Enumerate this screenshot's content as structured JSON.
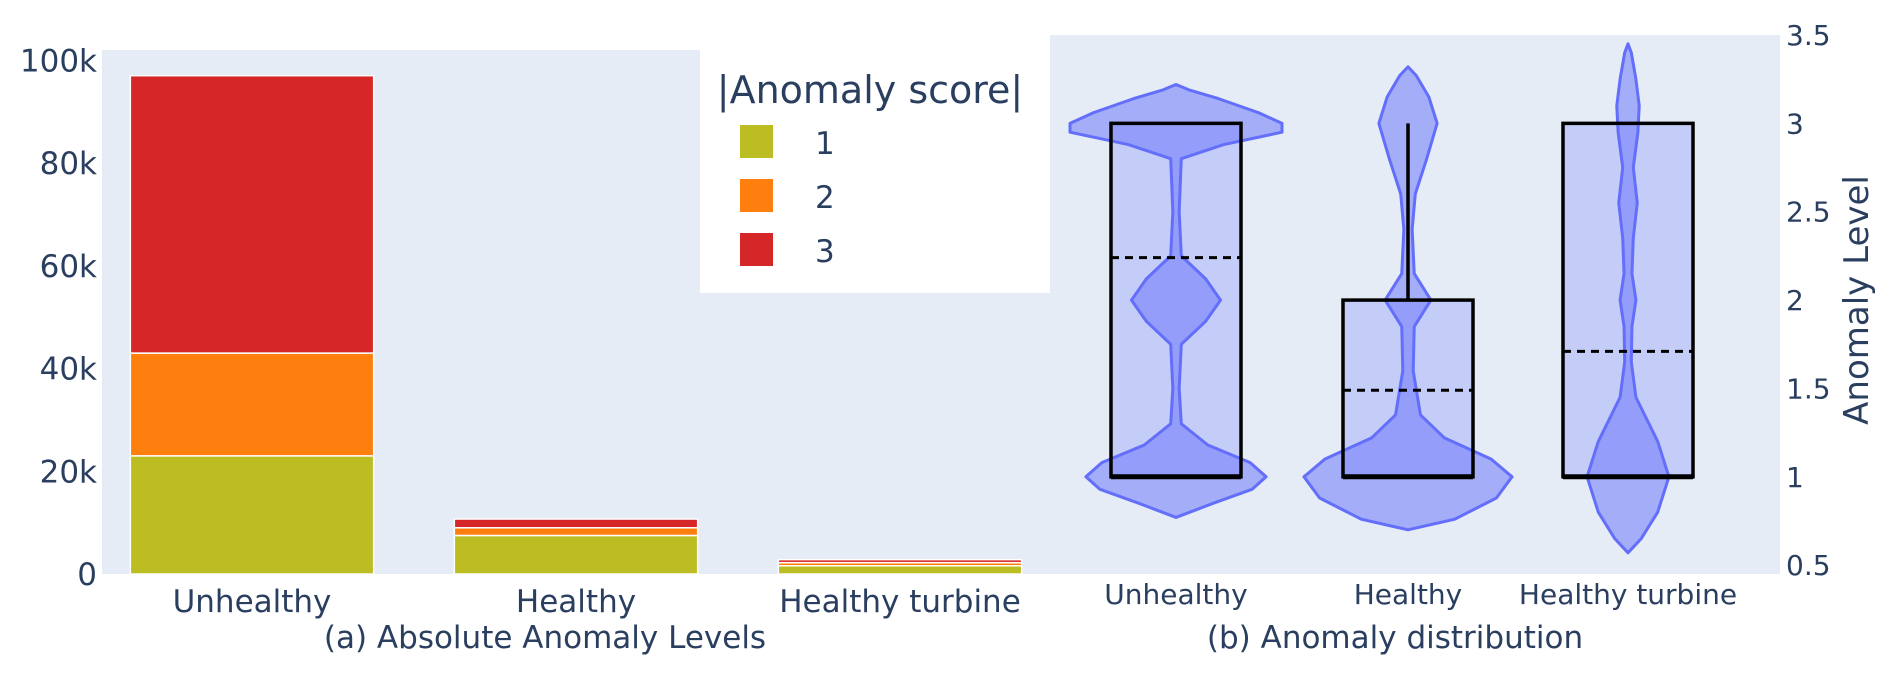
{
  "chart_data": [
    {
      "type": "bar",
      "stacked": true,
      "caption": "(a) Absolute Anomaly Levels",
      "categories": [
        "Unhealthy",
        "Healthy",
        "Healthy turbine"
      ],
      "series": [
        {
          "name": "1",
          "values": [
            23000,
            7500,
            1600
          ],
          "color": "#bcbd22"
        },
        {
          "name": "2",
          "values": [
            20000,
            1500,
            600
          ],
          "color": "#ff7f0e"
        },
        {
          "name": "3",
          "values": [
            54000,
            1700,
            600
          ],
          "color": "#d62728"
        }
      ],
      "legend": {
        "title": "|Anomaly score|",
        "position": "top-right"
      },
      "ylim": [
        0,
        102000
      ],
      "yticks": [
        {
          "value": 0,
          "label": "0"
        },
        {
          "value": 20000,
          "label": "20k"
        },
        {
          "value": 40000,
          "label": "40k"
        },
        {
          "value": 60000,
          "label": "60k"
        },
        {
          "value": 80000,
          "label": "80k"
        },
        {
          "value": 100000,
          "label": "100k"
        }
      ],
      "plot_bg": "#e5ecf6",
      "grid": false
    },
    {
      "type": "violin",
      "caption": "(b) Anomaly distribution",
      "ylabel": "Anomaly Level",
      "ylim": [
        0.45,
        3.5
      ],
      "yaxis_side": "right",
      "yticks": [
        {
          "value": 0.5,
          "label": "0.5"
        },
        {
          "value": 1,
          "label": "1"
        },
        {
          "value": 1.5,
          "label": "1.5"
        },
        {
          "value": 2,
          "label": "2"
        },
        {
          "value": 2.5,
          "label": "2.5"
        },
        {
          "value": 3,
          "label": "3"
        },
        {
          "value": 3.5,
          "label": "3.5"
        }
      ],
      "categories": [
        "Unhealthy",
        "Healthy",
        "Healthy turbine"
      ],
      "box": [
        {
          "q1": 1,
          "median": 1,
          "q3": 3,
          "mean": 2.24,
          "whisker_low": 1,
          "whisker_high": 3
        },
        {
          "q1": 1,
          "median": 1,
          "q3": 2,
          "mean": 1.49,
          "whisker_low": 1,
          "whisker_high": 3
        },
        {
          "q1": 1,
          "median": 1,
          "q3": 3,
          "mean": 1.71,
          "whisker_low": 1,
          "whisker_high": 3
        }
      ],
      "violins": [
        {
          "ymin": 0.77,
          "ymax": 3.22,
          "profile": [
            [
              0.77,
              0.0
            ],
            [
              0.85,
              0.35
            ],
            [
              0.93,
              0.72
            ],
            [
              1.0,
              0.85
            ],
            [
              1.08,
              0.7
            ],
            [
              1.18,
              0.3
            ],
            [
              1.3,
              0.05
            ],
            [
              1.5,
              0.03
            ],
            [
              1.75,
              0.05
            ],
            [
              1.88,
              0.28
            ],
            [
              2.0,
              0.42
            ],
            [
              2.12,
              0.28
            ],
            [
              2.25,
              0.05
            ],
            [
              2.5,
              0.03
            ],
            [
              2.8,
              0.05
            ],
            [
              2.88,
              0.45
            ],
            [
              2.95,
              1.0
            ],
            [
              3.0,
              1.0
            ],
            [
              3.06,
              0.78
            ],
            [
              3.14,
              0.4
            ],
            [
              3.19,
              0.12
            ],
            [
              3.22,
              0.0
            ]
          ]
        },
        {
          "ymin": 0.7,
          "ymax": 3.32,
          "profile": [
            [
              0.7,
              0.0
            ],
            [
              0.76,
              0.45
            ],
            [
              0.88,
              0.85
            ],
            [
              1.0,
              1.0
            ],
            [
              1.1,
              0.8
            ],
            [
              1.22,
              0.35
            ],
            [
              1.35,
              0.12
            ],
            [
              1.6,
              0.05
            ],
            [
              1.85,
              0.06
            ],
            [
              2.0,
              0.22
            ],
            [
              2.15,
              0.06
            ],
            [
              2.4,
              0.04
            ],
            [
              2.6,
              0.07
            ],
            [
              2.8,
              0.18
            ],
            [
              3.0,
              0.28
            ],
            [
              3.15,
              0.2
            ],
            [
              3.27,
              0.08
            ],
            [
              3.32,
              0.0
            ]
          ]
        },
        {
          "ymin": 0.57,
          "ymax": 3.45,
          "profile": [
            [
              0.57,
              0.0
            ],
            [
              0.65,
              0.2
            ],
            [
              0.8,
              0.45
            ],
            [
              1.0,
              0.62
            ],
            [
              1.2,
              0.45
            ],
            [
              1.45,
              0.12
            ],
            [
              1.65,
              0.05
            ],
            [
              1.85,
              0.06
            ],
            [
              2.0,
              0.12
            ],
            [
              2.15,
              0.06
            ],
            [
              2.35,
              0.08
            ],
            [
              2.55,
              0.14
            ],
            [
              2.75,
              0.08
            ],
            [
              2.95,
              0.15
            ],
            [
              3.1,
              0.17
            ],
            [
              3.25,
              0.12
            ],
            [
              3.4,
              0.05
            ],
            [
              3.45,
              0.0
            ]
          ]
        }
      ],
      "fill": "#636efa",
      "plot_bg": "#e5ecf6"
    }
  ]
}
